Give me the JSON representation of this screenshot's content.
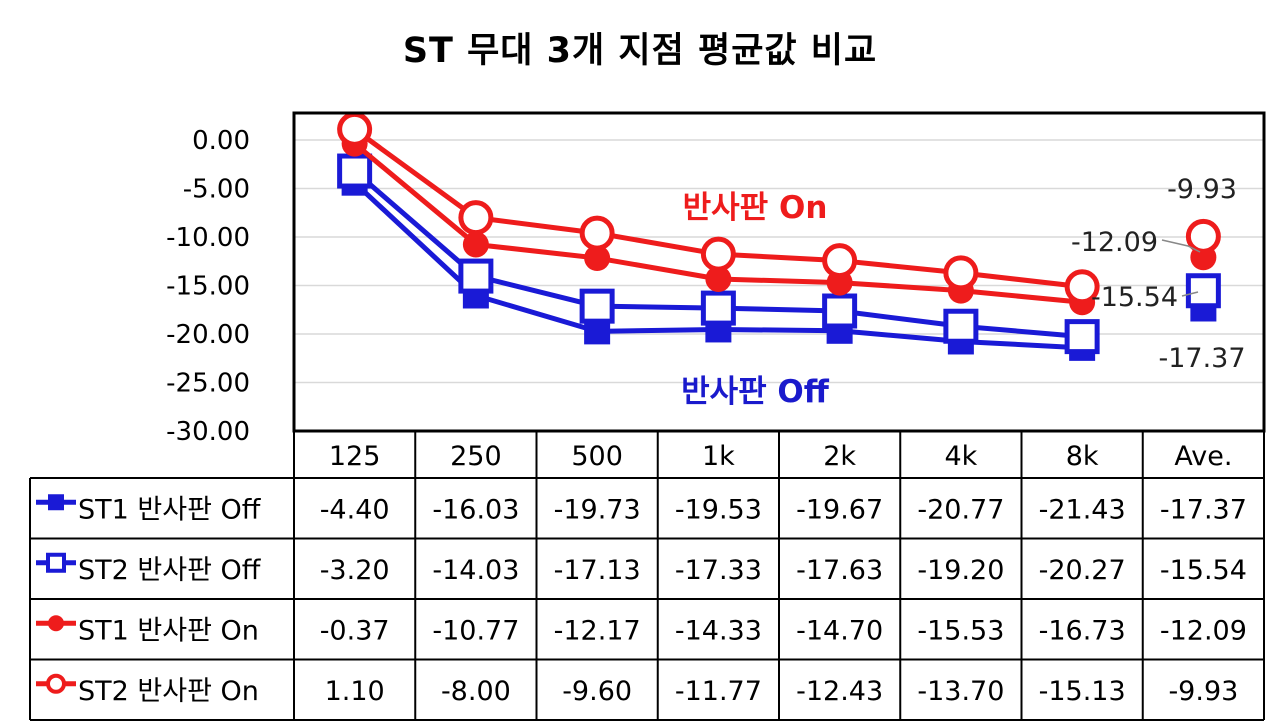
{
  "title": "ST 무대 3개 지점 평균값 비교",
  "annotations": {
    "on_label": "반사판 On",
    "off_label": "반사판 Off",
    "values": [
      "-9.93",
      "-12.09",
      "-15.54",
      "-17.37"
    ]
  },
  "colors": {
    "blue": "#1a1ad6",
    "red": "#ee1c1c",
    "grid": "#d9d9d9"
  },
  "chart_data": {
    "type": "line",
    "title": "ST 무대 3개 지점 평균값 비교",
    "categories": [
      "125",
      "250",
      "500",
      "1k",
      "2k",
      "4k",
      "8k",
      "Ave."
    ],
    "ylim": [
      -30,
      0
    ],
    "yticks": [
      "0.00",
      "-5.00",
      "-10.00",
      "-15.00",
      "-20.00",
      "-25.00",
      "-30.00"
    ],
    "grid": true,
    "series": [
      {
        "name": "ST1 반사판 Off",
        "marker": "square-filled",
        "color": "blue",
        "values": [
          -4.4,
          -16.03,
          -19.73,
          -19.53,
          -19.67,
          -20.77,
          -21.43,
          -17.37
        ],
        "labels": [
          "-4.40",
          "-16.03",
          "-19.73",
          "-19.53",
          "-19.67",
          "-20.77",
          "-21.43",
          "-17.37"
        ]
      },
      {
        "name": "ST2 반사판 Off",
        "marker": "square-open",
        "color": "blue",
        "values": [
          -3.2,
          -14.03,
          -17.13,
          -17.33,
          -17.63,
          -19.2,
          -20.27,
          -15.54
        ],
        "labels": [
          "-3.20",
          "-14.03",
          "-17.13",
          "-17.33",
          "-17.63",
          "-19.20",
          "-20.27",
          "-15.54"
        ]
      },
      {
        "name": "ST1 반사판 On",
        "marker": "circle-filled",
        "color": "red",
        "values": [
          -0.37,
          -10.77,
          -12.17,
          -14.33,
          -14.7,
          -15.53,
          -16.73,
          -12.09
        ],
        "labels": [
          "-0.37",
          "-10.77",
          "-12.17",
          "-14.33",
          "-14.70",
          "-15.53",
          "-16.73",
          "-12.09"
        ]
      },
      {
        "name": "ST2 반사판 On",
        "marker": "circle-open",
        "color": "red",
        "values": [
          1.1,
          -8.0,
          -9.6,
          -11.77,
          -12.43,
          -13.7,
          -15.13,
          -9.93
        ],
        "labels": [
          "1.10",
          "-8.00",
          "-9.60",
          "-11.77",
          "-12.43",
          "-13.70",
          "-15.13",
          "-9.93"
        ]
      }
    ]
  }
}
